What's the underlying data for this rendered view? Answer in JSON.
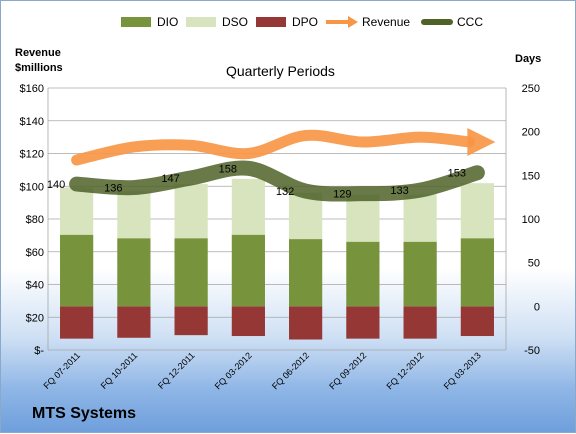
{
  "legend": [
    {
      "label": "DIO",
      "color": "#77933c",
      "shape": "box"
    },
    {
      "label": "DSO",
      "color": "#d7e4bd",
      "shape": "box"
    },
    {
      "label": "DPO",
      "color": "#953735",
      "shape": "box"
    },
    {
      "label": "Revenue",
      "color": "#f79646",
      "shape": "arrow"
    },
    {
      "label": "CCC",
      "color": "#4f6228",
      "shape": "line"
    }
  ],
  "chart_title": "Quarterly Periods",
  "left_axis_title_line1": "Revenue",
  "left_axis_title_line2": "$millions",
  "right_axis_title": "Days",
  "company": "MTS Systems",
  "chart_data": {
    "type": "bar",
    "title": "Quarterly Periods",
    "categories": [
      "FQ 07-2011",
      "FQ 10-2011",
      "FQ 12-2011",
      "FQ 03-2012",
      "FQ 06-2012",
      "FQ 09-2012",
      "FQ 12-2012",
      "FQ 03-2013"
    ],
    "left_axis": {
      "label": "Revenue $millions",
      "ylim": [
        0,
        160
      ],
      "ticks": [
        "$-",
        "$20",
        "$40",
        "$60",
        "$80",
        "$100",
        "$120",
        "$140",
        "$160"
      ]
    },
    "right_axis": {
      "label": "Days",
      "ylim": [
        -50,
        250
      ],
      "ticks": [
        "-50",
        "0",
        "50",
        "100",
        "150",
        "200",
        "250"
      ]
    },
    "stacked_days_series": [
      {
        "name": "DIO",
        "values": [
          82,
          78,
          78,
          82,
          77,
          74,
          74,
          78
        ]
      },
      {
        "name": "DSO",
        "values": [
          54,
          54,
          62,
          64,
          53,
          54,
          54,
          63
        ]
      },
      {
        "name": "DPO",
        "values": [
          -37,
          -36,
          -33,
          -34,
          -38,
          -37,
          -37,
          -34
        ]
      }
    ],
    "line_series": [
      {
        "name": "Revenue",
        "axis": "left",
        "values": [
          116,
          124,
          125,
          120,
          131,
          127,
          130,
          127
        ]
      },
      {
        "name": "CCC",
        "axis": "right",
        "values": [
          140,
          136,
          147,
          158,
          132,
          129,
          133,
          153
        ],
        "labels": [
          "140",
          "136",
          "147",
          "158",
          "132",
          "129",
          "133",
          "153"
        ]
      }
    ],
    "grid": true,
    "legend_position": "top"
  }
}
